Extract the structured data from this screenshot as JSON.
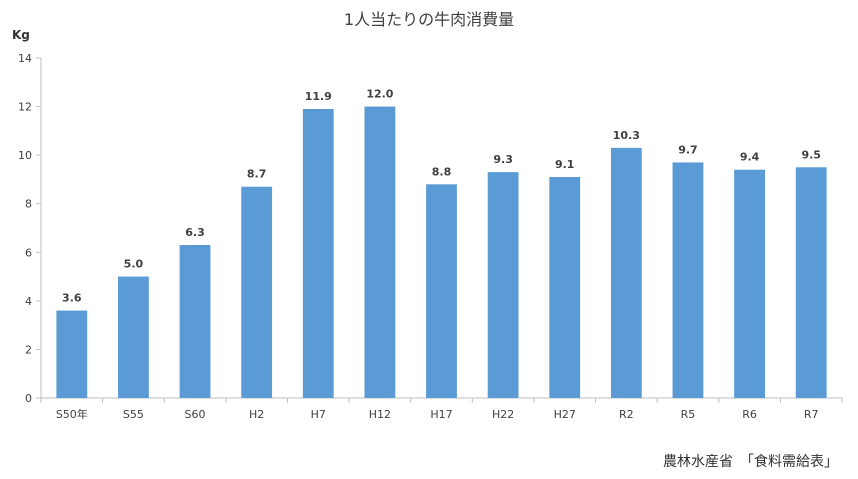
{
  "chart_data": {
    "type": "bar",
    "title": "1人当たりの牛肉消費量",
    "ylabel": "Kg",
    "xlabel": "",
    "categories": [
      "S50年",
      "S55",
      "S60",
      "H2",
      "H7",
      "H12",
      "H17",
      "H22",
      "H27",
      "R2",
      "R5",
      "R6",
      "R7"
    ],
    "values": [
      3.6,
      5.0,
      6.3,
      8.7,
      11.9,
      12.0,
      8.8,
      9.3,
      9.1,
      10.3,
      9.7,
      9.4,
      9.5
    ],
    "data_labels": [
      "3.6",
      "5.0",
      "6.3",
      "8.7",
      "11.9",
      "12.0",
      "8.8",
      "9.3",
      "9.1",
      "10.3",
      "9.7",
      "9.4",
      "9.5"
    ],
    "ylim": [
      0,
      14
    ],
    "yticks": [
      0,
      2,
      4,
      6,
      8,
      10,
      12,
      14
    ],
    "grid": false,
    "legend": "none",
    "bar_color": "#5b9bd5",
    "source": "農林水産省　「食料需給表」"
  }
}
